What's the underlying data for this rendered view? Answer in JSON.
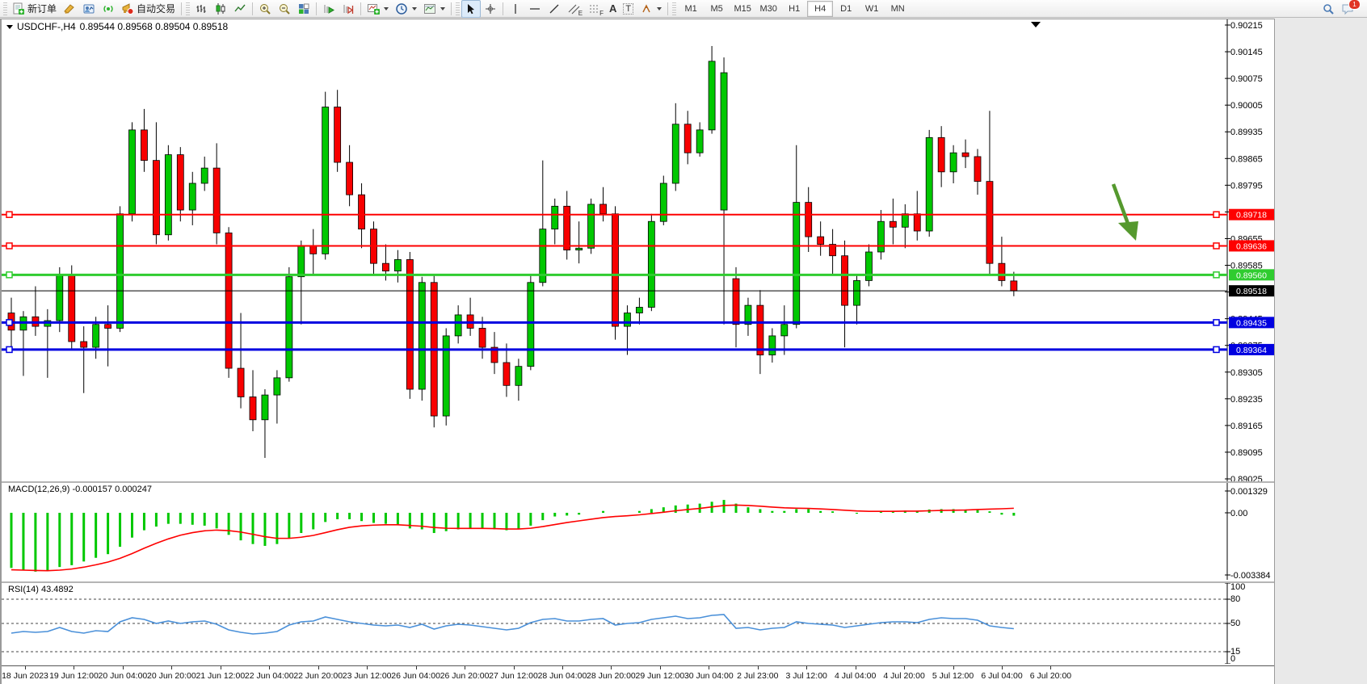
{
  "toolbar": {
    "new_order_label": "新订单",
    "auto_trading_label": "自动交易",
    "glyph_e": "E",
    "glyph_f": "F",
    "glyph_a": "A",
    "glyph_t": "T",
    "timeframes": [
      "M1",
      "M5",
      "M15",
      "M30",
      "H1",
      "H4",
      "D1",
      "W1",
      "MN"
    ],
    "active_timeframe": "H4",
    "notification_count": "1"
  },
  "chart": {
    "title": {
      "symbol_period": "USDCHF-,H4",
      "ohlc": "0.89544 0.89568 0.89504 0.89518"
    },
    "colors": {
      "bull": "#00c800",
      "bear": "#f80000",
      "wick": "#000000",
      "arrow": "#55992e"
    },
    "price_axis_ticks": [
      "0.90215",
      "0.90145",
      "0.90075",
      "0.90005",
      "0.89935",
      "0.89865",
      "0.89795",
      "0.89725",
      "0.89655",
      "0.89585",
      "0.89515",
      "0.89445",
      "0.89375",
      "0.89305",
      "0.89235",
      "0.89165",
      "0.89095",
      "0.89025"
    ],
    "horizontal_lines": [
      {
        "price": 0.89718,
        "label": "0.89718",
        "color": "#fe0000",
        "width": 2,
        "handles": true
      },
      {
        "price": 0.89636,
        "label": "0.89636",
        "color": "#fe0000",
        "width": 2,
        "handles": true
      },
      {
        "price": 0.8956,
        "label": "0.89560",
        "color": "#2fcc2f",
        "width": 3,
        "handles": true
      },
      {
        "price": 0.89518,
        "label": "0.89518",
        "color": "#000000",
        "width": 1,
        "handles": false
      },
      {
        "price": 0.89435,
        "label": "0.89435",
        "color": "#0000e0",
        "width": 3,
        "handles": true
      },
      {
        "price": 0.89364,
        "label": "0.89364",
        "color": "#0000e0",
        "width": 3,
        "handles": true
      }
    ],
    "candles": [
      [
        0.8946,
        0.895,
        0.8936,
        0.89415
      ],
      [
        0.89415,
        0.89465,
        0.89295,
        0.8945
      ],
      [
        0.8945,
        0.8953,
        0.894,
        0.89425
      ],
      [
        0.89425,
        0.8947,
        0.8929,
        0.8944
      ],
      [
        0.8944,
        0.8958,
        0.8941,
        0.8956
      ],
      [
        0.8956,
        0.89585,
        0.89365,
        0.89385
      ],
      [
        0.89385,
        0.89425,
        0.8925,
        0.8937
      ],
      [
        0.8937,
        0.8945,
        0.8934,
        0.8943
      ],
      [
        0.8943,
        0.8948,
        0.8932,
        0.8942
      ],
      [
        0.8942,
        0.8974,
        0.8941,
        0.8972
      ],
      [
        0.8972,
        0.8996,
        0.897,
        0.8994
      ],
      [
        0.8994,
        0.89995,
        0.8983,
        0.8986
      ],
      [
        0.8986,
        0.8996,
        0.8964,
        0.89665
      ],
      [
        0.89665,
        0.899,
        0.8965,
        0.89875
      ],
      [
        0.89875,
        0.89895,
        0.897,
        0.8973
      ],
      [
        0.8973,
        0.8983,
        0.8969,
        0.898
      ],
      [
        0.898,
        0.8987,
        0.8978,
        0.8984
      ],
      [
        0.8984,
        0.89905,
        0.8964,
        0.8967
      ],
      [
        0.8967,
        0.89685,
        0.8929,
        0.89315
      ],
      [
        0.89315,
        0.8946,
        0.8921,
        0.8924
      ],
      [
        0.8924,
        0.8931,
        0.8915,
        0.8918
      ],
      [
        0.8918,
        0.8926,
        0.8908,
        0.89245
      ],
      [
        0.89245,
        0.8931,
        0.8917,
        0.8929
      ],
      [
        0.8929,
        0.8958,
        0.8928,
        0.89555
      ],
      [
        0.89555,
        0.8965,
        0.8943,
        0.89635
      ],
      [
        0.89635,
        0.8968,
        0.8956,
        0.89615
      ],
      [
        0.89615,
        0.9004,
        0.896,
        0.9
      ],
      [
        0.9,
        0.90045,
        0.8983,
        0.89855
      ],
      [
        0.89855,
        0.899,
        0.8974,
        0.8977
      ],
      [
        0.8977,
        0.898,
        0.8963,
        0.8968
      ],
      [
        0.8968,
        0.897,
        0.8956,
        0.8959
      ],
      [
        0.8959,
        0.8964,
        0.89545,
        0.8957
      ],
      [
        0.8957,
        0.89625,
        0.8954,
        0.896
      ],
      [
        0.896,
        0.8962,
        0.89235,
        0.8926
      ],
      [
        0.8926,
        0.89555,
        0.8923,
        0.8954
      ],
      [
        0.8954,
        0.8956,
        0.8916,
        0.8919
      ],
      [
        0.8919,
        0.8942,
        0.89165,
        0.894
      ],
      [
        0.894,
        0.8948,
        0.8938,
        0.89455
      ],
      [
        0.89455,
        0.895,
        0.894,
        0.8942
      ],
      [
        0.8942,
        0.8945,
        0.8934,
        0.8937
      ],
      [
        0.8937,
        0.8941,
        0.893,
        0.8933
      ],
      [
        0.8933,
        0.8938,
        0.8924,
        0.8927
      ],
      [
        0.8927,
        0.8934,
        0.8923,
        0.8932
      ],
      [
        0.8932,
        0.8956,
        0.8931,
        0.8954
      ],
      [
        0.8954,
        0.8986,
        0.8953,
        0.8968
      ],
      [
        0.8968,
        0.8976,
        0.8964,
        0.8974
      ],
      [
        0.8974,
        0.8978,
        0.896,
        0.89625
      ],
      [
        0.89625,
        0.897,
        0.8959,
        0.8963
      ],
      [
        0.8963,
        0.8976,
        0.89615,
        0.89745
      ],
      [
        0.89745,
        0.8979,
        0.897,
        0.8972
      ],
      [
        0.8972,
        0.8974,
        0.8939,
        0.89425
      ],
      [
        0.89425,
        0.8948,
        0.8935,
        0.8946
      ],
      [
        0.8946,
        0.895,
        0.8943,
        0.89475
      ],
      [
        0.89475,
        0.8972,
        0.89465,
        0.897
      ],
      [
        0.897,
        0.8982,
        0.8969,
        0.898
      ],
      [
        0.898,
        0.9001,
        0.8978,
        0.89955
      ],
      [
        0.89955,
        0.8999,
        0.8985,
        0.8988
      ],
      [
        0.8988,
        0.8996,
        0.8987,
        0.8994
      ],
      [
        0.8994,
        0.9016,
        0.8993,
        0.9012
      ],
      [
        0.8973,
        0.9013,
        0.8943,
        0.9009
      ],
      [
        0.8955,
        0.8958,
        0.8937,
        0.8943
      ],
      [
        0.8943,
        0.895,
        0.894,
        0.8948
      ],
      [
        0.8948,
        0.8952,
        0.893,
        0.8935
      ],
      [
        0.8935,
        0.8942,
        0.8933,
        0.894
      ],
      [
        0.894,
        0.8948,
        0.8935,
        0.8943
      ],
      [
        0.8943,
        0.899,
        0.8942,
        0.8975
      ],
      [
        0.8975,
        0.8979,
        0.8962,
        0.8966
      ],
      [
        0.8966,
        0.897,
        0.8961,
        0.8964
      ],
      [
        0.8964,
        0.8968,
        0.8956,
        0.8961
      ],
      [
        0.8961,
        0.8965,
        0.8937,
        0.8948
      ],
      [
        0.8948,
        0.8956,
        0.8943,
        0.89545
      ],
      [
        0.89545,
        0.8964,
        0.8953,
        0.8962
      ],
      [
        0.8962,
        0.8973,
        0.896,
        0.897
      ],
      [
        0.897,
        0.8976,
        0.8964,
        0.89685
      ],
      [
        0.89685,
        0.89745,
        0.8963,
        0.8972
      ],
      [
        0.8972,
        0.8978,
        0.8965,
        0.89675
      ],
      [
        0.89675,
        0.8994,
        0.8966,
        0.8992
      ],
      [
        0.8992,
        0.8995,
        0.8979,
        0.8983
      ],
      [
        0.8983,
        0.899,
        0.898,
        0.8988
      ],
      [
        0.8988,
        0.89915,
        0.8984,
        0.8987
      ],
      [
        0.8987,
        0.8989,
        0.8977,
        0.89805
      ],
      [
        0.89805,
        0.8999,
        0.8956,
        0.8959
      ],
      [
        0.8959,
        0.8966,
        0.8953,
        0.89545
      ],
      [
        0.89544,
        0.89568,
        0.89504,
        0.89518
      ]
    ],
    "time_axis": [
      "18 Jun 2023",
      "19 Jun 12:00",
      "20 Jun 04:00",
      "20 Jun 20:00",
      "21 Jun 12:00",
      "22 Jun 04:00",
      "22 Jun 20:00",
      "23 Jun 12:00",
      "26 Jun 04:00",
      "26 Jun 20:00",
      "27 Jun 12:00",
      "28 Jun 04:00",
      "28 Jun 20:00",
      "29 Jun 12:00",
      "30 Jun 04:00",
      "2 Jul 23:00",
      "3 Jul 12:00",
      "4 Jul 04:00",
      "4 Jul 20:00",
      "5 Jul 12:00",
      "6 Jul 04:00",
      "6 Jul 20:00"
    ]
  },
  "macd": {
    "label": "MACD(12,26,9) -0.000157 0.000247",
    "axis": [
      {
        "label": "0.001329",
        "value": 0.001329
      },
      {
        "label": "0.00",
        "value": 0
      },
      {
        "label": "-0.003384",
        "value": -0.003384
      }
    ],
    "histogram_color": "#00c800",
    "signal_color": "#fe0000",
    "histogram": [
      -0.003,
      -0.0031,
      -0.0032,
      -0.00315,
      -0.00295,
      -0.00285,
      -0.00265,
      -0.00245,
      -0.00225,
      -0.00185,
      -0.00135,
      -0.00095,
      -0.00075,
      -0.0006,
      -0.0006,
      -0.00065,
      -0.0007,
      -0.00085,
      -0.0012,
      -0.0015,
      -0.0017,
      -0.0018,
      -0.0017,
      -0.0014,
      -0.0011,
      -0.0009,
      -0.0005,
      -0.00035,
      -0.00035,
      -0.00045,
      -0.00055,
      -0.0006,
      -0.00065,
      -0.00085,
      -0.0009,
      -0.0011,
      -0.001,
      -0.0009,
      -0.00085,
      -0.00085,
      -0.0009,
      -0.00095,
      -0.0009,
      -0.0007,
      -0.0004,
      -0.0002,
      -0.00015,
      -0.0001,
      0.0,
      0.0001,
      0.0,
      0.0,
      0.0001,
      0.0002,
      0.0003,
      0.0004,
      0.00045,
      0.0005,
      0.0006,
      0.0007,
      0.0005,
      0.0003,
      0.0002,
      0.0001,
      0.0001,
      0.0002,
      0.0002,
      0.0001,
      8e-05,
      0.0,
      -5e-05,
      0.0,
      8e-05,
      0.0001,
      0.00012,
      0.0001,
      0.00018,
      0.0002,
      0.0002,
      0.00018,
      0.00015,
      8e-05,
      -0.0001,
      -0.000157
    ],
    "signal": [
      -0.0031,
      -0.00312,
      -0.00314,
      -0.00315,
      -0.00312,
      -0.00306,
      -0.00296,
      -0.00283,
      -0.00268,
      -0.00248,
      -0.00222,
      -0.00193,
      -0.00166,
      -0.00142,
      -0.00122,
      -0.00108,
      -0.00098,
      -0.00094,
      -0.00097,
      -0.00105,
      -0.00117,
      -0.0013,
      -0.00139,
      -0.00139,
      -0.00133,
      -0.00123,
      -0.00108,
      -0.00092,
      -0.00079,
      -0.00071,
      -0.00067,
      -0.00065,
      -0.00065,
      -0.00069,
      -0.00073,
      -0.0008,
      -0.00084,
      -0.00085,
      -0.00085,
      -0.00085,
      -0.00086,
      -0.00088,
      -0.00088,
      -0.00084,
      -0.00075,
      -0.00064,
      -0.00053,
      -0.00044,
      -0.00035,
      -0.00026,
      -0.0002,
      -0.00016,
      -0.00011,
      -4e-05,
      3e-05,
      0.00011,
      0.00018,
      0.00024,
      0.00032,
      0.0004,
      0.00042,
      0.0004,
      0.00036,
      0.00031,
      0.00027,
      0.00025,
      0.00024,
      0.00021,
      0.00018,
      0.00014,
      0.0001,
      8e-05,
      8e-05,
      8e-05,
      9e-05,
      9e-05,
      0.00011,
      0.00013,
      0.00014,
      0.00015,
      0.00018,
      0.0002,
      0.00022,
      0.000247
    ]
  },
  "rsi": {
    "label": "RSI(14) 43.4892",
    "line_color": "#4a90d9",
    "levels": [
      80,
      50,
      15
    ],
    "axis": [
      {
        "label": "100",
        "value": 100
      },
      {
        "label": "80",
        "value": 80
      },
      {
        "label": "50",
        "value": 50
      },
      {
        "label": "15",
        "value": 15
      },
      {
        "label": "0",
        "value": 0
      }
    ],
    "values": [
      38,
      40,
      39,
      40,
      45,
      40,
      38,
      41,
      40,
      52,
      57,
      55,
      50,
      53,
      50,
      52,
      53,
      49,
      42,
      39,
      37,
      38,
      40,
      48,
      52,
      53,
      58,
      55,
      52,
      50,
      48,
      47,
      48,
      45,
      49,
      43,
      47,
      49,
      48,
      46,
      44,
      42,
      44,
      51,
      55,
      56,
      53,
      53,
      55,
      56,
      48,
      50,
      51,
      55,
      57,
      59,
      56,
      57,
      60,
      61,
      44,
      45,
      42,
      44,
      45,
      52,
      50,
      49,
      48,
      45,
      47,
      49,
      51,
      52,
      52,
      51,
      55,
      57,
      56,
      56,
      54,
      47,
      45,
      43.4892
    ]
  }
}
